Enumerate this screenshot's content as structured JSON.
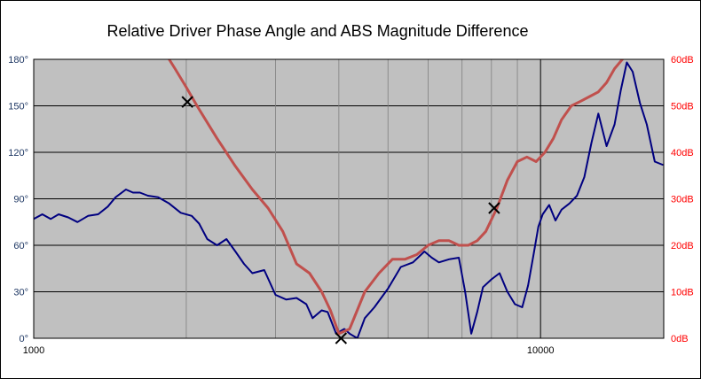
{
  "chart_data": {
    "type": "line",
    "title": "Relative Driver Phase Angle and ABS Magnitude  Difference",
    "x_scale": "log",
    "xlim": [
      1000,
      17500
    ],
    "x_tick_labels": [
      {
        "value": 1000,
        "label": "1000"
      },
      {
        "value": 10000,
        "label": "10000"
      }
    ],
    "ylim_left": [
      0,
      180
    ],
    "y_left_ticks": [
      {
        "value": 0,
        "label": "0°"
      },
      {
        "value": 30,
        "label": "30°"
      },
      {
        "value": 60,
        "label": "60°"
      },
      {
        "value": 90,
        "label": "90°"
      },
      {
        "value": 120,
        "label": "120°"
      },
      {
        "value": 150,
        "label": "150°"
      },
      {
        "value": 180,
        "label": "180°"
      }
    ],
    "ylim_right": [
      0,
      60
    ],
    "y_right_ticks": [
      {
        "value": 0,
        "label": "0dB"
      },
      {
        "value": 10,
        "label": "10dB"
      },
      {
        "value": 20,
        "label": "20dB"
      },
      {
        "value": 30,
        "label": "30dB"
      },
      {
        "value": 40,
        "label": "40dB"
      },
      {
        "value": 50,
        "label": "50dB"
      },
      {
        "value": 60,
        "label": "60dB"
      }
    ],
    "grid": true,
    "background_color": "#c0c0c0",
    "series": [
      {
        "color": "#000080",
        "axis": "left",
        "x": [
          1000,
          1040,
          1080,
          1120,
          1170,
          1220,
          1280,
          1340,
          1400,
          1450,
          1520,
          1570,
          1620,
          1680,
          1760,
          1850,
          1950,
          2050,
          2120,
          2200,
          2300,
          2400,
          2500,
          2600,
          2700,
          2850,
          3000,
          3150,
          3300,
          3450,
          3550,
          3700,
          3800,
          3950,
          4100,
          4200,
          4350,
          4500,
          4700,
          5000,
          5300,
          5600,
          5900,
          6100,
          6300,
          6600,
          6900,
          7100,
          7300,
          7500,
          7700,
          8000,
          8300,
          8600,
          8900,
          9200,
          9450,
          9700,
          9900,
          10100,
          10400,
          10700,
          11000,
          11400,
          11800,
          12200,
          12600,
          13000,
          13500,
          14000,
          14400,
          14800,
          15200,
          15700,
          16200,
          16800,
          17400
        ],
        "y": [
          77,
          80,
          77,
          80,
          78,
          75,
          79,
          80,
          85,
          91,
          96,
          94,
          94,
          92,
          91,
          87,
          81,
          79,
          74,
          64,
          60,
          64,
          56,
          48,
          42,
          44,
          28,
          25,
          26,
          22,
          13,
          18,
          17,
          3,
          6,
          3,
          0,
          13,
          20,
          32,
          46,
          49,
          56,
          52,
          49,
          51,
          52,
          30,
          3,
          17,
          33,
          38,
          42,
          30,
          22,
          20,
          34,
          55,
          72,
          80,
          86,
          76,
          83,
          87,
          92,
          104,
          126,
          145,
          124,
          138,
          160,
          178,
          172,
          152,
          138,
          114,
          112
        ]
      },
      {
        "color": "#c0504d",
        "axis": "right",
        "x": [
          1850,
          1900,
          2000,
          2100,
          2300,
          2500,
          2700,
          2900,
          3100,
          3300,
          3500,
          3700,
          3850,
          4000,
          4200,
          4500,
          4800,
          5100,
          5400,
          5700,
          6000,
          6300,
          6600,
          6900,
          7200,
          7500,
          7800,
          8200,
          8600,
          9000,
          9400,
          9800,
          10200,
          10600,
          11000,
          11500,
          12000,
          12500,
          13000,
          13500,
          14000,
          14500
        ],
        "y": [
          60,
          58,
          54,
          50,
          43,
          37,
          32,
          28,
          23,
          16,
          14,
          10,
          6,
          1,
          2,
          10,
          14,
          17,
          17,
          18,
          20,
          21,
          21,
          20,
          20,
          21,
          23,
          28,
          34,
          38,
          39,
          38,
          40,
          43,
          47,
          50,
          51,
          52,
          53,
          55,
          58,
          60
        ]
      }
    ],
    "markers": [
      {
        "x": 2010,
        "y": 152.5,
        "axis": "left",
        "symbol": "x"
      },
      {
        "x": 4040,
        "y": 0,
        "axis": "left",
        "symbol": "x"
      },
      {
        "x": 8100,
        "y": 28,
        "axis": "right",
        "symbol": "x"
      }
    ]
  }
}
